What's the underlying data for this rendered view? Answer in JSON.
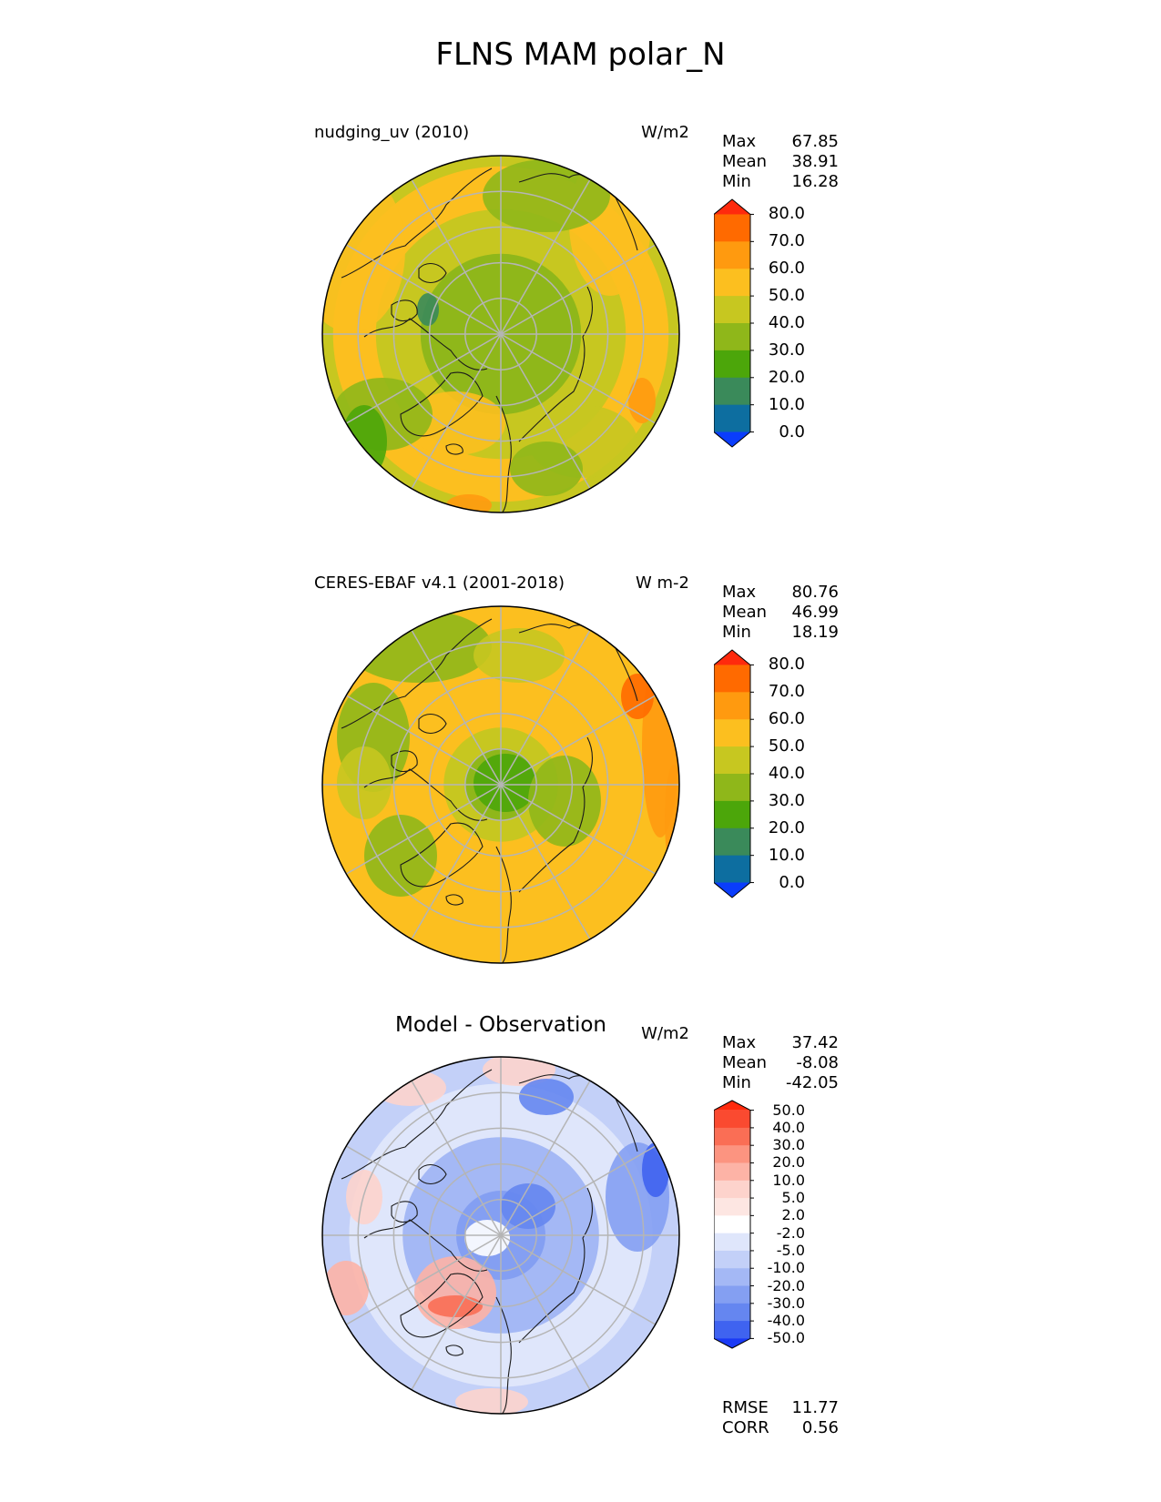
{
  "figure": {
    "title": "FLNS MAM polar_N"
  },
  "panels": [
    {
      "id": "test",
      "title": "nudging_uv (2010)",
      "units": "W/m2",
      "stats": [
        {
          "label": "Max",
          "value": "67.85"
        },
        {
          "label": "Mean",
          "value": "38.91"
        },
        {
          "label": "Min",
          "value": "16.28"
        }
      ],
      "colorbar": {
        "ticks": [
          "80.0",
          "70.0",
          "60.0",
          "50.0",
          "40.0",
          "30.0",
          "20.0",
          "10.0",
          "0.0"
        ],
        "colors": [
          "#ff2a0d",
          "#ff6a00",
          "#ff9a0f",
          "#fcbf1f",
          "#c7c720",
          "#8fb71a",
          "#4ca60a",
          "#3a8a5a",
          "#0d6ea0",
          "#0a3dfc"
        ]
      }
    },
    {
      "id": "ref",
      "title": "CERES-EBAF v4.1 (2001-2018)",
      "units": "W m-2",
      "stats": [
        {
          "label": "Max",
          "value": "80.76"
        },
        {
          "label": "Mean",
          "value": "46.99"
        },
        {
          "label": "Min",
          "value": "18.19"
        }
      ],
      "colorbar": {
        "ticks": [
          "80.0",
          "70.0",
          "60.0",
          "50.0",
          "40.0",
          "30.0",
          "20.0",
          "10.0",
          "0.0"
        ],
        "colors": [
          "#ff2a0d",
          "#ff6a00",
          "#ff9a0f",
          "#fcbf1f",
          "#c7c720",
          "#8fb71a",
          "#4ca60a",
          "#3a8a5a",
          "#0d6ea0",
          "#0a3dfc"
        ]
      }
    },
    {
      "id": "diff",
      "title": "Model - Observation",
      "units": "W/m2",
      "stats": [
        {
          "label": "Max",
          "value": "37.42"
        },
        {
          "label": "Mean",
          "value": "-8.08"
        },
        {
          "label": "Min",
          "value": "-42.05"
        }
      ],
      "colorbar": {
        "ticks": [
          "50.0",
          "40.0",
          "30.0",
          "20.0",
          "10.0",
          "5.0",
          "2.0",
          "-2.0",
          "-5.0",
          "-10.0",
          "-20.0",
          "-30.0",
          "-40.0",
          "-50.0"
        ],
        "colors": [
          "#ff2a0d",
          "#fa4a30",
          "#fa6e55",
          "#fc9480",
          "#fdb3a6",
          "#fdd3cc",
          "#fde6e2",
          "#ffffff",
          "#dfe6fb",
          "#c3d0f8",
          "#a4b8f5",
          "#849ff2",
          "#6586f0",
          "#3f63f0",
          "#1a3af5"
        ]
      }
    }
  ],
  "metrics": [
    {
      "label": "RMSE",
      "value": "11.77"
    },
    {
      "label": "CORR",
      "value": "0.56"
    }
  ]
}
